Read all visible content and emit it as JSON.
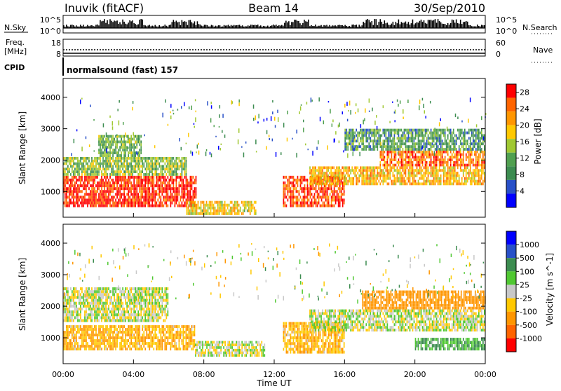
{
  "header": {
    "station": "Inuvik (fitACF)",
    "beam": "Beam 14",
    "date": "30/Sep/2010"
  },
  "strip_panels": {
    "nsky": {
      "label": "N.Sky",
      "tick_top": "10^5",
      "tick_bottom": "10^0"
    },
    "nsearch": {
      "label": "N.Search",
      "tick_top": "10^5",
      "tick_bottom": "10^0"
    },
    "freq": {
      "label_line1": "Freq.",
      "label_line2": "[MHz]",
      "tick_top": "18",
      "tick_bottom": "8"
    },
    "nave": {
      "label": "Nave",
      "tick_top": "60",
      "tick_bottom": "0"
    },
    "cpid": {
      "label": "CPID",
      "text": "normalsound (fast) 157"
    }
  },
  "colors": {
    "power": [
      "#0000ff",
      "#2850c8",
      "#3c8c50",
      "#50a050",
      "#a0c832",
      "#ffc800",
      "#ff9600",
      "#ff6400",
      "#ff0000"
    ],
    "velocity": [
      "#ff0000",
      "#ff6400",
      "#ff9600",
      "#ffc800",
      "#c8c8c8",
      "#50c832",
      "#3c8c50",
      "#2850c8",
      "#0000ff"
    ]
  },
  "chart_data": [
    {
      "type": "heatmap",
      "title": "",
      "xlabel": "Time UT",
      "ylabel": "Slant Range [km]",
      "xlim": [
        "00:00",
        "24:00"
      ],
      "ylim": [
        180,
        4600
      ],
      "x_ticks": [
        "00:00",
        "04:00",
        "08:00",
        "12:00",
        "16:00",
        "20:00",
        "00:00"
      ],
      "y_ticks": [
        "1000",
        "2000",
        "3000",
        "4000"
      ],
      "colorbar": {
        "label": "Power [dB]",
        "ticks": [
          "4",
          "8",
          "12",
          "16",
          "20",
          "24",
          "28"
        ],
        "range": [
          0,
          30
        ]
      },
      "features": [
        {
          "time_start_h": 0.0,
          "time_end_h": 7.6,
          "range_km": [
            500,
            1500
          ],
          "power_db": 28
        },
        {
          "time_start_h": 0.0,
          "time_end_h": 7.0,
          "range_km": [
            1500,
            2100
          ],
          "power_db": 14
        },
        {
          "time_start_h": 2.0,
          "time_end_h": 4.5,
          "range_km": [
            2100,
            2800
          ],
          "power_db": 12
        },
        {
          "time_start_h": 7.0,
          "time_end_h": 11.0,
          "range_km": [
            250,
            700
          ],
          "power_db": 18
        },
        {
          "time_start_h": 12.5,
          "time_end_h": 16.0,
          "range_km": [
            500,
            1500
          ],
          "power_db": 26
        },
        {
          "time_start_h": 14.0,
          "time_end_h": 24.0,
          "range_km": [
            1200,
            1800
          ],
          "power_db": 20
        },
        {
          "time_start_h": 18.0,
          "time_end_h": 24.0,
          "range_km": [
            1800,
            2300
          ],
          "power_db": 24
        },
        {
          "time_start_h": 16.0,
          "time_end_h": 24.0,
          "range_km": [
            2300,
            3000
          ],
          "power_db": 10
        }
      ]
    },
    {
      "type": "heatmap",
      "title": "",
      "xlabel": "Time UT",
      "ylabel": "Slant Range [km]",
      "xlim": [
        "00:00",
        "24:00"
      ],
      "ylim": [
        180,
        4600
      ],
      "x_ticks": [
        "00:00",
        "04:00",
        "08:00",
        "12:00",
        "16:00",
        "20:00",
        "00:00"
      ],
      "y_ticks": [
        "1000",
        "2000",
        "3000",
        "4000"
      ],
      "colorbar": {
        "label": "Velocity [m s^-1]",
        "ticks": [
          "1000",
          "500",
          "100",
          "25",
          "-25",
          "-100",
          "-500",
          "-1000"
        ]
      },
      "features": [
        {
          "time_start_h": 0.0,
          "time_end_h": 7.5,
          "range_km": [
            600,
            1400
          ],
          "velocity_ms": -100
        },
        {
          "time_start_h": 0.0,
          "time_end_h": 6.0,
          "range_km": [
            1500,
            2600
          ],
          "velocity_ms": 0
        },
        {
          "time_start_h": 7.5,
          "time_end_h": 11.5,
          "range_km": [
            400,
            900
          ],
          "velocity_ms": 0
        },
        {
          "time_start_h": 12.5,
          "time_end_h": 16.0,
          "range_km": [
            500,
            1500
          ],
          "velocity_ms": -100
        },
        {
          "time_start_h": 14.0,
          "time_end_h": 24.0,
          "range_km": [
            1200,
            1900
          ],
          "velocity_ms": 0
        },
        {
          "time_start_h": 17.0,
          "time_end_h": 24.0,
          "range_km": [
            1900,
            2500
          ],
          "velocity_ms": -300
        },
        {
          "time_start_h": 20.0,
          "time_end_h": 24.0,
          "range_km": [
            600,
            1000
          ],
          "velocity_ms": 100
        }
      ]
    }
  ]
}
